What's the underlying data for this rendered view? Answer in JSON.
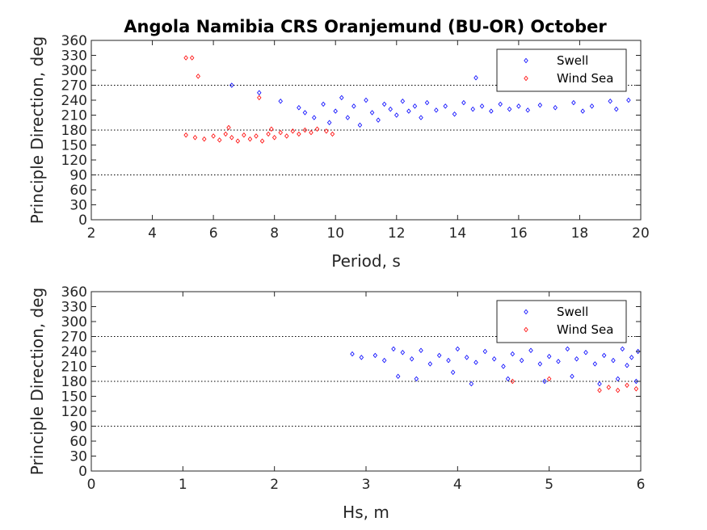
{
  "chart_data": [
    {
      "type": "scatter",
      "title": "Angola Namibia CRS Oranjemund (BU-OR) October",
      "xlabel": "Period, s",
      "ylabel": "Principle Direction, deg",
      "xlim": [
        2,
        20
      ],
      "ylim": [
        0,
        360
      ],
      "xticks": [
        2,
        4,
        6,
        8,
        10,
        12,
        14,
        16,
        18,
        20
      ],
      "yticks": [
        0,
        30,
        60,
        90,
        120,
        150,
        180,
        210,
        240,
        270,
        300,
        330,
        360
      ],
      "reference_lines": [
        90,
        180,
        270
      ],
      "legend_position": "top-right",
      "marker": "diamond",
      "series": [
        {
          "name": "Swell",
          "color": "#0000ff",
          "points": [
            [
              6.6,
              270
            ],
            [
              7.5,
              255
            ],
            [
              8.2,
              238
            ],
            [
              8.8,
              225
            ],
            [
              9.0,
              215
            ],
            [
              9.3,
              205
            ],
            [
              9.6,
              232
            ],
            [
              9.8,
              195
            ],
            [
              10.0,
              218
            ],
            [
              10.2,
              245
            ],
            [
              10.4,
              205
            ],
            [
              10.6,
              228
            ],
            [
              10.8,
              190
            ],
            [
              11.0,
              240
            ],
            [
              11.2,
              215
            ],
            [
              11.4,
              200
            ],
            [
              11.6,
              232
            ],
            [
              11.8,
              222
            ],
            [
              12.0,
              210
            ],
            [
              12.2,
              238
            ],
            [
              12.4,
              218
            ],
            [
              12.6,
              228
            ],
            [
              12.8,
              205
            ],
            [
              13.0,
              235
            ],
            [
              13.3,
              220
            ],
            [
              13.6,
              228
            ],
            [
              13.9,
              212
            ],
            [
              14.2,
              235
            ],
            [
              14.5,
              222
            ],
            [
              14.6,
              285
            ],
            [
              14.8,
              228
            ],
            [
              15.1,
              218
            ],
            [
              15.4,
              232
            ],
            [
              15.7,
              222
            ],
            [
              16.0,
              228
            ],
            [
              16.3,
              220
            ],
            [
              16.7,
              230
            ],
            [
              17.2,
              225
            ],
            [
              17.8,
              235
            ],
            [
              18.4,
              228
            ],
            [
              19.0,
              238
            ],
            [
              19.6,
              240
            ],
            [
              19.2,
              222
            ],
            [
              18.1,
              218
            ]
          ]
        },
        {
          "name": "Wind Sea",
          "color": "#ff0000",
          "points": [
            [
              5.1,
              325
            ],
            [
              5.3,
              325
            ],
            [
              5.5,
              288
            ],
            [
              5.1,
              170
            ],
            [
              5.4,
              165
            ],
            [
              5.7,
              162
            ],
            [
              6.0,
              168
            ],
            [
              6.2,
              160
            ],
            [
              6.4,
              172
            ],
            [
              6.6,
              165
            ],
            [
              6.8,
              158
            ],
            [
              7.0,
              170
            ],
            [
              7.2,
              162
            ],
            [
              7.4,
              168
            ],
            [
              7.5,
              245
            ],
            [
              7.6,
              158
            ],
            [
              7.8,
              172
            ],
            [
              8.0,
              165
            ],
            [
              8.2,
              175
            ],
            [
              8.4,
              168
            ],
            [
              8.6,
              178
            ],
            [
              8.8,
              172
            ],
            [
              9.0,
              180
            ],
            [
              9.2,
              175
            ],
            [
              9.4,
              182
            ],
            [
              9.7,
              178
            ],
            [
              9.9,
              172
            ],
            [
              6.5,
              185
            ],
            [
              7.9,
              182
            ]
          ]
        }
      ]
    },
    {
      "type": "scatter",
      "xlabel": "Hs, m",
      "ylabel": "Principle Direction, deg",
      "xlim": [
        0,
        6
      ],
      "ylim": [
        0,
        360
      ],
      "xticks": [
        0,
        1,
        2,
        3,
        4,
        5,
        6
      ],
      "yticks": [
        0,
        30,
        60,
        90,
        120,
        150,
        180,
        210,
        240,
        270,
        300,
        330,
        360
      ],
      "reference_lines": [
        90,
        180,
        270
      ],
      "legend_position": "top-right",
      "marker": "diamond",
      "series": [
        {
          "name": "Swell",
          "color": "#0000ff",
          "points": [
            [
              2.85,
              235
            ],
            [
              2.95,
              228
            ],
            [
              3.1,
              232
            ],
            [
              3.2,
              222
            ],
            [
              3.3,
              245
            ],
            [
              3.35,
              190
            ],
            [
              3.4,
              238
            ],
            [
              3.5,
              225
            ],
            [
              3.55,
              185
            ],
            [
              3.6,
              242
            ],
            [
              3.7,
              215
            ],
            [
              3.8,
              232
            ],
            [
              3.9,
              222
            ],
            [
              3.95,
              198
            ],
            [
              4.0,
              245
            ],
            [
              4.1,
              228
            ],
            [
              4.15,
              175
            ],
            [
              4.2,
              218
            ],
            [
              4.3,
              240
            ],
            [
              4.4,
              225
            ],
            [
              4.5,
              210
            ],
            [
              4.55,
              185
            ],
            [
              4.6,
              235
            ],
            [
              4.7,
              222
            ],
            [
              4.8,
              242
            ],
            [
              4.9,
              215
            ],
            [
              4.95,
              180
            ],
            [
              5.0,
              230
            ],
            [
              5.1,
              220
            ],
            [
              5.2,
              245
            ],
            [
              5.25,
              190
            ],
            [
              5.3,
              225
            ],
            [
              5.4,
              238
            ],
            [
              5.5,
              215
            ],
            [
              5.55,
              175
            ],
            [
              5.6,
              232
            ],
            [
              5.7,
              222
            ],
            [
              5.75,
              185
            ],
            [
              5.8,
              245
            ],
            [
              5.85,
              212
            ],
            [
              5.9,
              228
            ],
            [
              5.95,
              180
            ],
            [
              5.97,
              240
            ]
          ]
        },
        {
          "name": "Wind Sea",
          "color": "#ff0000",
          "points": [
            [
              4.6,
              180
            ],
            [
              5.0,
              185
            ],
            [
              5.55,
              162
            ],
            [
              5.65,
              168
            ],
            [
              5.75,
              162
            ],
            [
              5.85,
              172
            ],
            [
              5.95,
              165
            ]
          ]
        }
      ]
    }
  ]
}
